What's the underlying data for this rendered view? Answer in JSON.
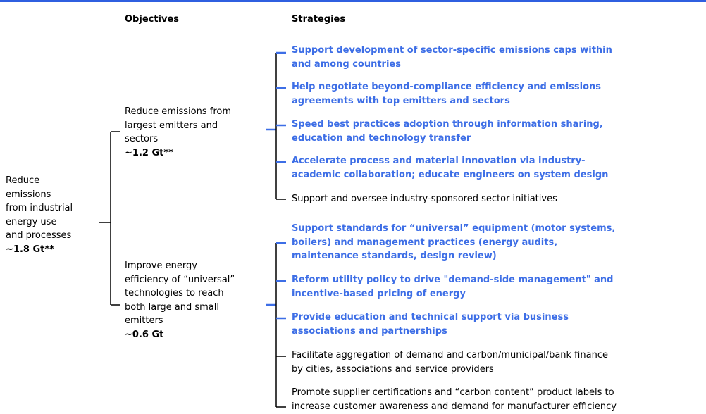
{
  "header": {
    "objectives": "Objectives",
    "strategies": "Strategies"
  },
  "root": {
    "lines": [
      "Reduce",
      "emissions",
      "from industrial",
      "energy use",
      "and processes"
    ],
    "value": "~1.8 Gt**"
  },
  "objectives": [
    {
      "lines": [
        "Reduce emissions from",
        "largest emitters and",
        "sectors"
      ],
      "value": "~1.2 Gt**",
      "strategies": [
        {
          "highlight": true,
          "lines": [
            "Support development of sector-specific emissions caps within",
            "and among countries"
          ]
        },
        {
          "highlight": true,
          "lines": [
            "Help negotiate beyond-compliance efficiency and emissions",
            "agreements with top emitters and sectors"
          ]
        },
        {
          "highlight": true,
          "lines": [
            "Speed best practices adoption through information sharing,",
            "education and technology transfer"
          ]
        },
        {
          "highlight": true,
          "lines": [
            "Accelerate process and material innovation via industry-",
            "academic collaboration; educate engineers on system design"
          ]
        },
        {
          "highlight": false,
          "lines": [
            "Support and oversee industry-sponsored sector initiatives"
          ]
        }
      ]
    },
    {
      "lines": [
        "Improve energy",
        "efficiency of “universal”",
        "technologies to reach",
        "both large and small",
        "emitters"
      ],
      "value": "~0.6 Gt",
      "strategies": [
        {
          "highlight": true,
          "lines": [
            "Support standards for “universal” equipment (motor systems,",
            "boilers) and management practices (energy audits,",
            "maintenance standards, design review)"
          ]
        },
        {
          "highlight": true,
          "lines": [
            "Reform utility policy to drive \"demand-side management\" and",
            "incentive-based pricing of energy"
          ]
        },
        {
          "highlight": true,
          "lines": [
            "Provide education and technical support via business",
            "associations and partnerships"
          ]
        },
        {
          "highlight": false,
          "lines": [
            "Facilitate aggregation of demand and carbon/municipal/bank finance",
            "by cities, associations and service providers"
          ]
        },
        {
          "highlight": false,
          "lines": [
            "Promote supplier certifications and “carbon content” product labels to",
            "increase customer awareness and demand for manufacturer efficiency"
          ]
        }
      ]
    }
  ]
}
